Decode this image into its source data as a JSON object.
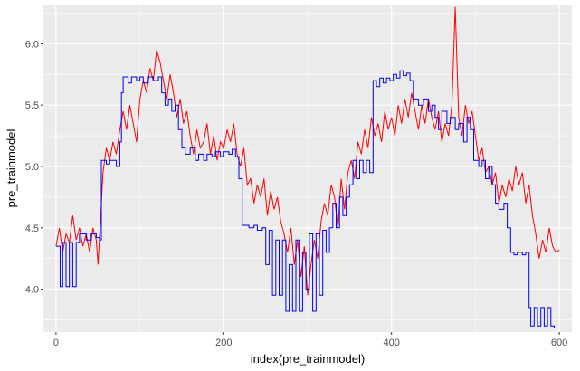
{
  "chart_data": {
    "type": "line",
    "title": "",
    "xlabel": "index(pre_trainmodel)",
    "ylabel": "pre_trainmodel",
    "xlim": [
      -15,
      615
    ],
    "ylim": [
      3.65,
      6.32
    ],
    "x_ticks": [
      0,
      200,
      400,
      600
    ],
    "x_tick_labels": [
      "0",
      "200",
      "400",
      "600"
    ],
    "y_ticks": [
      4.0,
      4.5,
      5.0,
      5.5,
      6.0
    ],
    "y_tick_labels": [
      "4.0",
      "4.5",
      "5.0",
      "5.5",
      "6.0"
    ],
    "grid": true,
    "panel_background": "#ebebeb",
    "legend": "none",
    "series": [
      {
        "color": "#ff0000",
        "style": "line",
        "points": [
          [
            0,
            4.35
          ],
          [
            4,
            4.5
          ],
          [
            8,
            4.3
          ],
          [
            12,
            4.45
          ],
          [
            16,
            4.38
          ],
          [
            20,
            4.6
          ],
          [
            24,
            4.4
          ],
          [
            28,
            4.5
          ],
          [
            32,
            4.35
          ],
          [
            36,
            4.45
          ],
          [
            40,
            4.3
          ],
          [
            44,
            4.5
          ],
          [
            48,
            4.4
          ],
          [
            50,
            4.2
          ],
          [
            53,
            4.55
          ],
          [
            56,
            4.95
          ],
          [
            60,
            5.15
          ],
          [
            64,
            5.05
          ],
          [
            68,
            5.2
          ],
          [
            72,
            5.1
          ],
          [
            76,
            5.3
          ],
          [
            80,
            5.45
          ],
          [
            84,
            5.3
          ],
          [
            88,
            5.5
          ],
          [
            92,
            5.35
          ],
          [
            96,
            5.2
          ],
          [
            100,
            5.55
          ],
          [
            104,
            5.7
          ],
          [
            108,
            5.6
          ],
          [
            112,
            5.8
          ],
          [
            116,
            5.7
          ],
          [
            120,
            5.95
          ],
          [
            124,
            5.85
          ],
          [
            128,
            5.7
          ],
          [
            132,
            5.55
          ],
          [
            136,
            5.75
          ],
          [
            140,
            5.6
          ],
          [
            144,
            5.4
          ],
          [
            148,
            5.55
          ],
          [
            152,
            5.35
          ],
          [
            156,
            5.45
          ],
          [
            160,
            5.25
          ],
          [
            164,
            5.1
          ],
          [
            168,
            5.3
          ],
          [
            172,
            5.15
          ],
          [
            176,
            5.2
          ],
          [
            180,
            5.35
          ],
          [
            184,
            5.1
          ],
          [
            188,
            5.25
          ],
          [
            192,
            5.05
          ],
          [
            196,
            5.2
          ],
          [
            200,
            5.15
          ],
          [
            204,
            5.3
          ],
          [
            208,
            5.2
          ],
          [
            212,
            5.35
          ],
          [
            216,
            5.1
          ],
          [
            220,
            5.0
          ],
          [
            224,
            5.15
          ],
          [
            228,
            4.85
          ],
          [
            232,
            4.9
          ],
          [
            236,
            4.7
          ],
          [
            240,
            4.85
          ],
          [
            244,
            4.75
          ],
          [
            248,
            4.9
          ],
          [
            252,
            4.6
          ],
          [
            256,
            4.8
          ],
          [
            260,
            4.65
          ],
          [
            264,
            4.75
          ],
          [
            268,
            4.55
          ],
          [
            272,
            4.45
          ],
          [
            276,
            4.3
          ],
          [
            280,
            4.5
          ],
          [
            284,
            4.2
          ],
          [
            288,
            4.4
          ],
          [
            292,
            4.1
          ],
          [
            296,
            4.35
          ],
          [
            300,
            3.95
          ],
          [
            304,
            4.2
          ],
          [
            308,
            4.4
          ],
          [
            312,
            4.25
          ],
          [
            316,
            4.55
          ],
          [
            320,
            4.7
          ],
          [
            324,
            4.6
          ],
          [
            328,
            4.85
          ],
          [
            332,
            4.75
          ],
          [
            336,
            4.5
          ],
          [
            340,
            4.9
          ],
          [
            344,
            4.65
          ],
          [
            348,
            4.95
          ],
          [
            352,
            5.05
          ],
          [
            356,
            4.9
          ],
          [
            360,
            5.2
          ],
          [
            364,
            5.1
          ],
          [
            368,
            5.3
          ],
          [
            372,
            5.15
          ],
          [
            376,
            5.4
          ],
          [
            380,
            5.25
          ],
          [
            384,
            5.35
          ],
          [
            388,
            5.2
          ],
          [
            392,
            5.45
          ],
          [
            396,
            5.3
          ],
          [
            400,
            5.4
          ],
          [
            404,
            5.25
          ],
          [
            408,
            5.5
          ],
          [
            412,
            5.35
          ],
          [
            416,
            5.55
          ],
          [
            420,
            5.4
          ],
          [
            424,
            5.6
          ],
          [
            428,
            5.45
          ],
          [
            432,
            5.3
          ],
          [
            436,
            5.5
          ],
          [
            440,
            5.35
          ],
          [
            444,
            5.55
          ],
          [
            448,
            5.4
          ],
          [
            452,
            5.3
          ],
          [
            456,
            5.45
          ],
          [
            460,
            5.2
          ],
          [
            464,
            5.35
          ],
          [
            468,
            5.25
          ],
          [
            472,
            5.5
          ],
          [
            476,
            6.3
          ],
          [
            480,
            5.4
          ],
          [
            484,
            5.25
          ],
          [
            488,
            5.5
          ],
          [
            492,
            5.35
          ],
          [
            496,
            5.45
          ],
          [
            500,
            5.25
          ],
          [
            504,
            5.05
          ],
          [
            508,
            5.15
          ],
          [
            512,
            4.95
          ],
          [
            516,
            5.0
          ],
          [
            520,
            4.85
          ],
          [
            524,
            4.95
          ],
          [
            528,
            4.7
          ],
          [
            532,
            4.85
          ],
          [
            536,
            4.75
          ],
          [
            540,
            4.9
          ],
          [
            544,
            4.8
          ],
          [
            548,
            5.0
          ],
          [
            552,
            4.85
          ],
          [
            556,
            4.95
          ],
          [
            560,
            4.7
          ],
          [
            564,
            4.85
          ],
          [
            568,
            4.6
          ],
          [
            572,
            4.45
          ],
          [
            576,
            4.25
          ],
          [
            580,
            4.4
          ],
          [
            584,
            4.3
          ],
          [
            588,
            4.5
          ],
          [
            592,
            4.35
          ],
          [
            596,
            4.3
          ],
          [
            600,
            4.32
          ]
        ]
      },
      {
        "color": "#0000ff",
        "style": "step",
        "points": [
          [
            0,
            4.35
          ],
          [
            5,
            4.02
          ],
          [
            8,
            4.38
          ],
          [
            12,
            4.02
          ],
          [
            16,
            4.38
          ],
          [
            20,
            4.02
          ],
          [
            24,
            4.38
          ],
          [
            28,
            4.45
          ],
          [
            36,
            4.4
          ],
          [
            42,
            4.45
          ],
          [
            48,
            4.42
          ],
          [
            52,
            4.4
          ],
          [
            54,
            5.05
          ],
          [
            60,
            5.02
          ],
          [
            64,
            5.05
          ],
          [
            72,
            5.0
          ],
          [
            76,
            5.2
          ],
          [
            78,
            5.6
          ],
          [
            80,
            5.73
          ],
          [
            86,
            5.68
          ],
          [
            90,
            5.73
          ],
          [
            96,
            5.7
          ],
          [
            100,
            5.73
          ],
          [
            104,
            5.68
          ],
          [
            110,
            5.73
          ],
          [
            116,
            5.7
          ],
          [
            122,
            5.73
          ],
          [
            126,
            5.6
          ],
          [
            130,
            5.5
          ],
          [
            134,
            5.55
          ],
          [
            138,
            5.45
          ],
          [
            142,
            5.5
          ],
          [
            146,
            5.3
          ],
          [
            150,
            5.15
          ],
          [
            154,
            5.1
          ],
          [
            160,
            5.15
          ],
          [
            166,
            5.05
          ],
          [
            170,
            5.1
          ],
          [
            176,
            5.05
          ],
          [
            180,
            5.1
          ],
          [
            186,
            5.08
          ],
          [
            190,
            5.12
          ],
          [
            196,
            5.08
          ],
          [
            200,
            5.12
          ],
          [
            206,
            5.1
          ],
          [
            210,
            5.14
          ],
          [
            214,
            5.08
          ],
          [
            218,
            4.9
          ],
          [
            222,
            4.52
          ],
          [
            230,
            4.5
          ],
          [
            236,
            4.52
          ],
          [
            240,
            4.48
          ],
          [
            246,
            4.5
          ],
          [
            250,
            4.2
          ],
          [
            254,
            4.48
          ],
          [
            258,
            3.95
          ],
          [
            262,
            4.4
          ],
          [
            266,
            3.95
          ],
          [
            270,
            4.4
          ],
          [
            274,
            3.82
          ],
          [
            278,
            4.2
          ],
          [
            282,
            3.82
          ],
          [
            286,
            4.4
          ],
          [
            290,
            3.82
          ],
          [
            294,
            4.3
          ],
          [
            298,
            4.0
          ],
          [
            302,
            4.45
          ],
          [
            306,
            3.82
          ],
          [
            310,
            4.45
          ],
          [
            314,
            3.95
          ],
          [
            318,
            4.48
          ],
          [
            322,
            4.3
          ],
          [
            326,
            4.5
          ],
          [
            330,
            4.7
          ],
          [
            334,
            4.5
          ],
          [
            338,
            4.75
          ],
          [
            342,
            4.6
          ],
          [
            346,
            4.75
          ],
          [
            350,
            4.85
          ],
          [
            354,
            5.05
          ],
          [
            358,
            4.9
          ],
          [
            362,
            5.05
          ],
          [
            366,
            4.95
          ],
          [
            370,
            5.05
          ],
          [
            374,
            4.95
          ],
          [
            378,
            5.7
          ],
          [
            382,
            5.65
          ],
          [
            386,
            5.72
          ],
          [
            390,
            5.68
          ],
          [
            394,
            5.72
          ],
          [
            398,
            5.7
          ],
          [
            402,
            5.75
          ],
          [
            406,
            5.72
          ],
          [
            410,
            5.78
          ],
          [
            414,
            5.74
          ],
          [
            418,
            5.76
          ],
          [
            422,
            5.7
          ],
          [
            426,
            5.55
          ],
          [
            432,
            5.5
          ],
          [
            438,
            5.55
          ],
          [
            444,
            5.45
          ],
          [
            448,
            5.5
          ],
          [
            452,
            5.4
          ],
          [
            456,
            5.3
          ],
          [
            460,
            5.45
          ],
          [
            466,
            5.35
          ],
          [
            470,
            5.4
          ],
          [
            476,
            5.3
          ],
          [
            480,
            5.35
          ],
          [
            486,
            5.2
          ],
          [
            490,
            5.4
          ],
          [
            494,
            5.3
          ],
          [
            498,
            5.05
          ],
          [
            504,
            5.0
          ],
          [
            508,
            5.05
          ],
          [
            512,
            4.9
          ],
          [
            516,
            5.0
          ],
          [
            520,
            4.85
          ],
          [
            524,
            4.7
          ],
          [
            528,
            4.65
          ],
          [
            534,
            4.7
          ],
          [
            538,
            4.5
          ],
          [
            542,
            4.3
          ],
          [
            546,
            4.28
          ],
          [
            550,
            4.3
          ],
          [
            556,
            4.28
          ],
          [
            560,
            4.3
          ],
          [
            564,
            3.85
          ],
          [
            566,
            3.7
          ],
          [
            570,
            3.85
          ],
          [
            574,
            3.7
          ],
          [
            578,
            3.85
          ],
          [
            582,
            3.7
          ],
          [
            586,
            3.85
          ],
          [
            590,
            3.7
          ],
          [
            594,
            3.68
          ]
        ]
      }
    ]
  }
}
